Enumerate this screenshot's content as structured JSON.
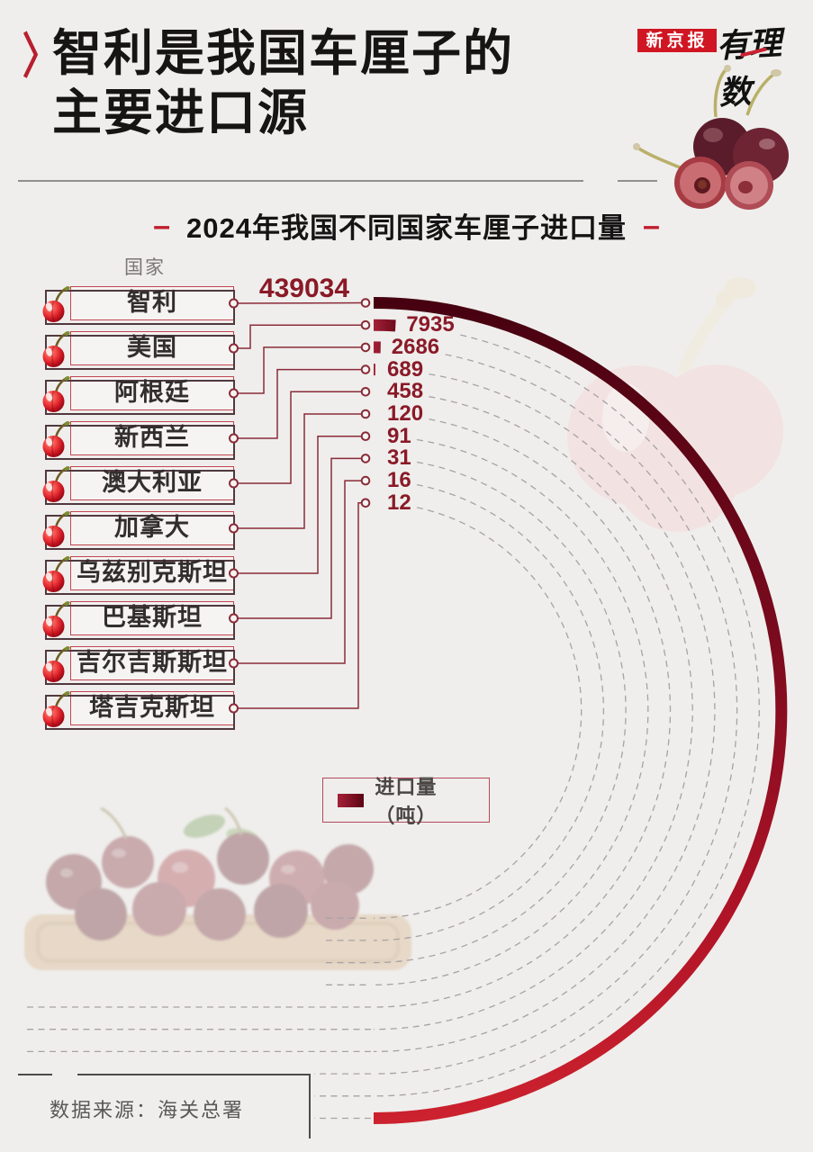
{
  "header": {
    "chevron": "〉",
    "title_line1": "智利是我国车厘子的",
    "title_line2": "主要进口源",
    "brand": "新京报",
    "brand_script": "有理数"
  },
  "subtitle": {
    "dash": "–",
    "text": "2024年我国不同国家车厘子进口量"
  },
  "chart": {
    "axis_label": "国家"
  },
  "legend": {
    "label": "进口量（吨）"
  },
  "source": {
    "text": "数据来源：海关总署"
  },
  "chart_data": {
    "type": "radial-bar",
    "title": "2024年我国不同国家车厘子进口量",
    "categories": [
      "智利",
      "美国",
      "阿根廷",
      "新西兰",
      "澳大利亚",
      "加拿大",
      "乌兹别克斯坦",
      "巴基斯坦",
      "吉尔吉斯斯坦",
      "塔吉克斯坦"
    ],
    "values": [
      439034,
      7935,
      2686,
      689,
      458,
      120,
      91,
      31,
      16,
      12
    ],
    "unit": "吨",
    "max_sweep_deg": 180,
    "value_label_color": "#8a1a28",
    "bar_color_start": "#42000f",
    "bar_color_end": "#d22430",
    "track_style": "dashed",
    "legend_position": "bottom-left"
  }
}
